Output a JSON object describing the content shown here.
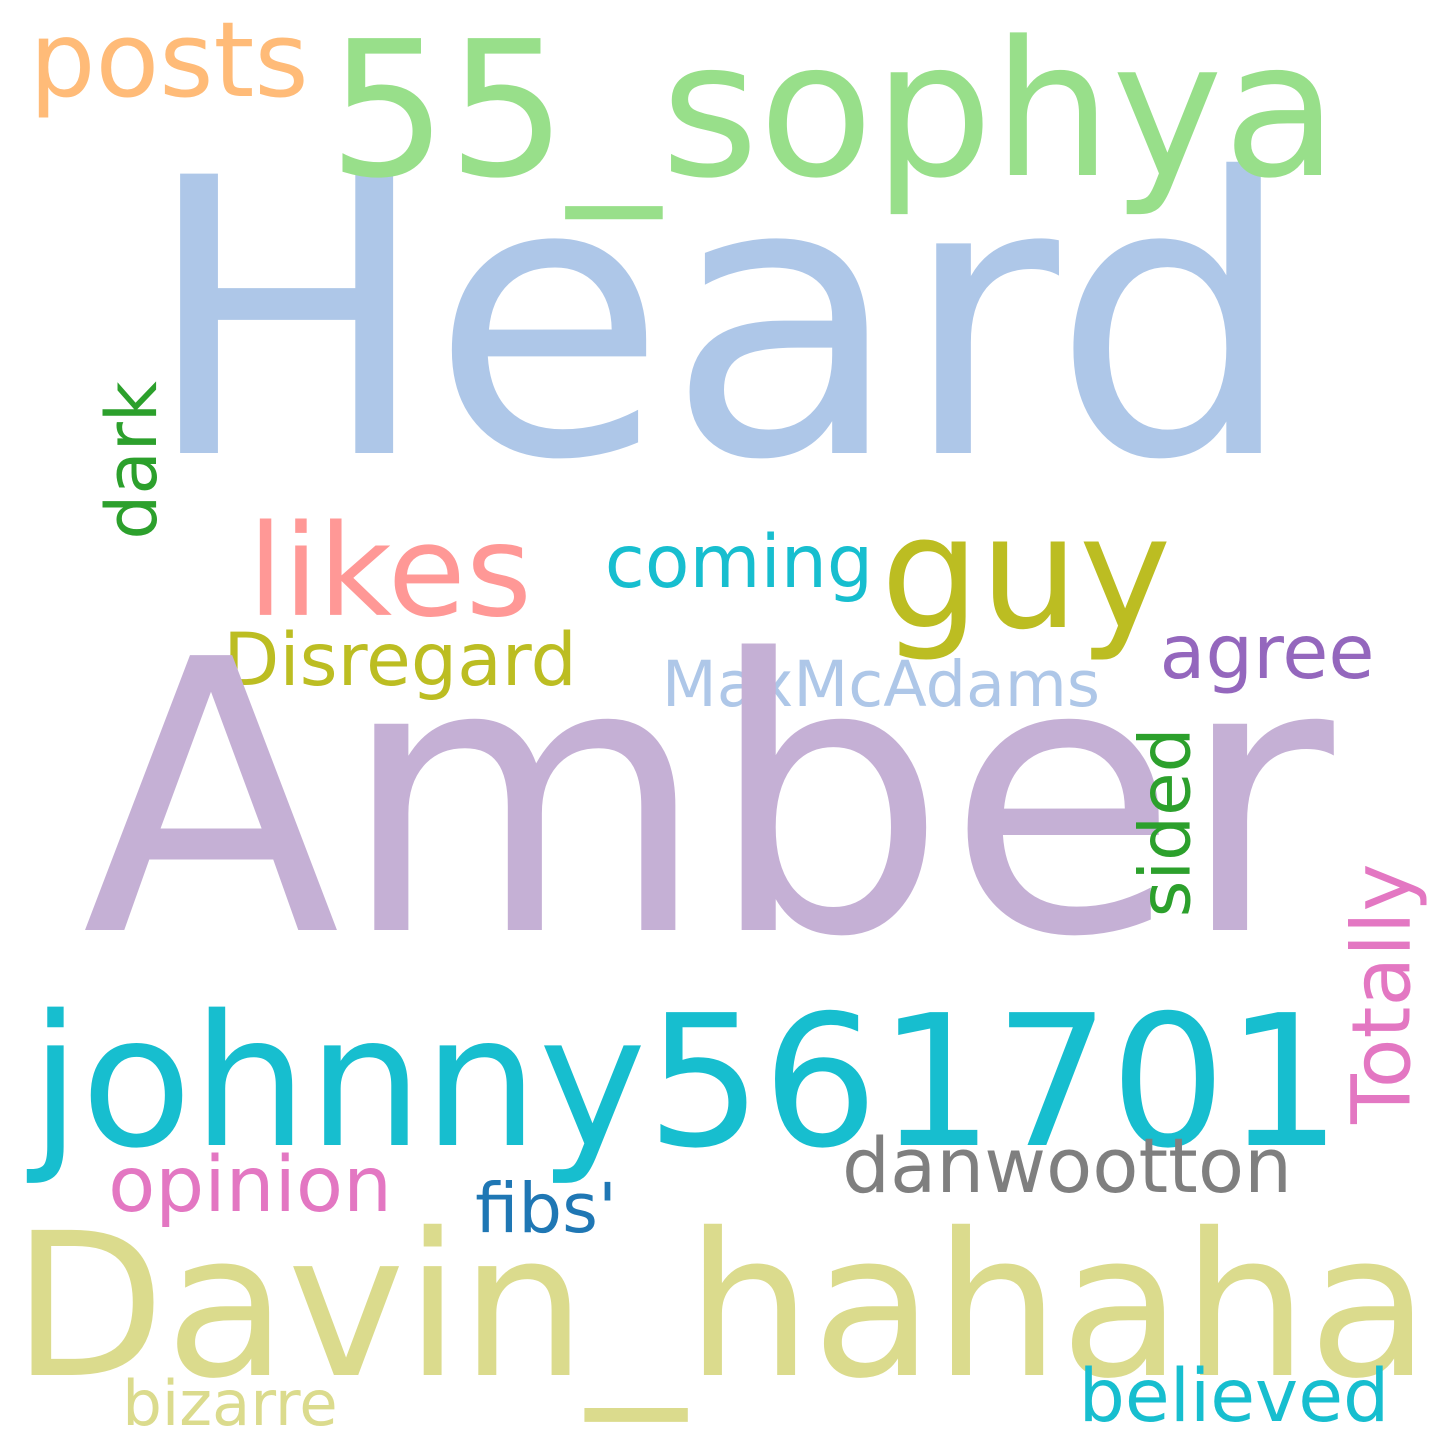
{
  "cloud": {
    "words": [
      {
        "id": "heard",
        "text": "Heard",
        "color": "#aec7e8"
      },
      {
        "id": "55-sophya",
        "text": "55_sophya",
        "color": "#98df8a"
      },
      {
        "id": "posts",
        "text": "posts",
        "color": "#ffbb78"
      },
      {
        "id": "guy",
        "text": "guy",
        "color": "#bcbd22"
      },
      {
        "id": "likes",
        "text": "likes",
        "color": "#ff9896"
      },
      {
        "id": "coming",
        "text": "coming",
        "color": "#17becf"
      },
      {
        "id": "dark",
        "text": "dark",
        "color": "#2ca02c"
      },
      {
        "id": "disregard",
        "text": "Disregard",
        "color": "#bcbd22"
      },
      {
        "id": "agree",
        "text": "agree",
        "color": "#9467bd"
      },
      {
        "id": "maxmcadams",
        "text": "MaxMcAdams",
        "color": "#aec7e8"
      },
      {
        "id": "amber",
        "text": "Amber",
        "color": "#c5b0d5"
      },
      {
        "id": "sided",
        "text": "sided",
        "color": "#2ca02c"
      },
      {
        "id": "totally",
        "text": "Totally",
        "color": "#e377c2"
      },
      {
        "id": "johnny561701",
        "text": "johnny561701",
        "color": "#17becf"
      },
      {
        "id": "danwootton",
        "text": "danwootton",
        "color": "#7f7f7f"
      },
      {
        "id": "opinion",
        "text": "opinion",
        "color": "#e377c2"
      },
      {
        "id": "fibs",
        "text": "fibs'",
        "color": "#1f77b4"
      },
      {
        "id": "davin-hahaha",
        "text": "Davin_hahaha",
        "color": "#dbdb8d"
      },
      {
        "id": "bizarre",
        "text": "bizarre",
        "color": "#dbdb8d"
      },
      {
        "id": "believed",
        "text": "believed",
        "color": "#17becf"
      }
    ]
  }
}
